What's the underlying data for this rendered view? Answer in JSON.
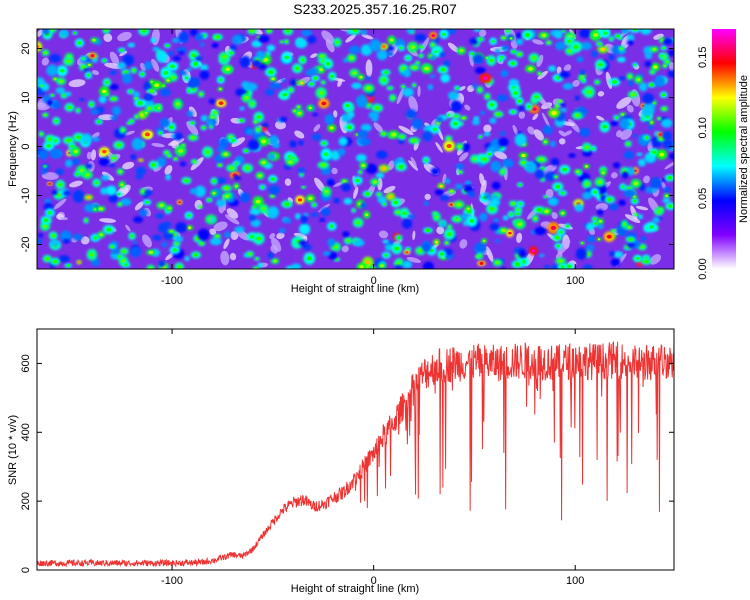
{
  "title": "S233.2025.357.16.25.R07",
  "chart_data": [
    {
      "type": "heatmap",
      "xlabel": "Height of straight line (km)",
      "ylabel": "Frequency (Hz)",
      "xlim": [
        -167,
        149
      ],
      "ylim": [
        -25,
        24
      ],
      "x_ticks": [
        -100,
        0,
        100
      ],
      "y_ticks": [
        -20,
        -10,
        0,
        10,
        20
      ],
      "colorbar": {
        "label": "Normalized spectral amplitude",
        "range": [
          0,
          0.17
        ],
        "ticks": [
          "0.00",
          "0.05",
          "0.10",
          "0.15"
        ],
        "colors": [
          "#ffffff",
          "#8000ff",
          "#0000ff",
          "#00ffff",
          "#00ff00",
          "#ffff00",
          "#ff0000",
          "#ff00ff"
        ]
      },
      "grid": false
    },
    {
      "type": "line",
      "xlabel": "Height of straight line (km)",
      "ylabel": "SNR (10 * v/v)",
      "xlim": [
        -167,
        149
      ],
      "ylim": [
        0,
        700
      ],
      "x_ticks": [
        -100,
        0,
        100
      ],
      "y_ticks": [
        0,
        200,
        400,
        600
      ],
      "series": [
        {
          "color": "#ee3333",
          "x": [
            -167,
            -150,
            -125,
            -100,
            -85,
            -78,
            -70,
            -65,
            -60,
            -55,
            -50,
            -45,
            -40,
            -35,
            -30,
            -25,
            -20,
            -15,
            -10,
            -5,
            0,
            5,
            10,
            15,
            20,
            25,
            30,
            40,
            50,
            60,
            70,
            80,
            90,
            100,
            110,
            120,
            130,
            140,
            149
          ],
          "y": [
            20,
            20,
            20,
            20,
            22,
            30,
            45,
            40,
            60,
            100,
            140,
            175,
            195,
            205,
            185,
            190,
            210,
            225,
            260,
            300,
            340,
            390,
            430,
            480,
            530,
            570,
            590,
            600,
            605,
            600,
            605,
            610,
            600,
            610,
            605,
            610,
            600,
            605,
            610
          ]
        }
      ],
      "grid": false
    }
  ]
}
